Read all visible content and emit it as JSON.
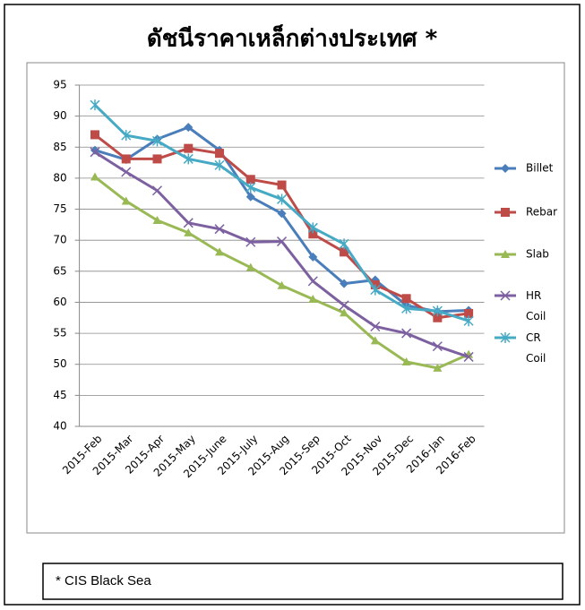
{
  "chart_data": {
    "type": "line",
    "title": "ดัชนีราคาเหล็กต่างประเทศ *",
    "categories": [
      "2015-Feb",
      "2015-Mar",
      "2015-Apr",
      "2015-May",
      "2015-June",
      "2015-July",
      "2015-Aug",
      "2015-Sep",
      "2015-Oct",
      "2015-Nov",
      "2015-Dec",
      "2016-Jan",
      "2016-Feb"
    ],
    "series": [
      {
        "name": "Billet",
        "color": "#4a7ebb",
        "marker": "diamond",
        "values": [
          84.5,
          83,
          86.3,
          88.2,
          84.5,
          77,
          74.3,
          67.3,
          63,
          63.6,
          59.5,
          58.5,
          58.7
        ]
      },
      {
        "name": "Rebar",
        "color": "#be4b48",
        "marker": "square",
        "values": [
          87,
          83.1,
          83.1,
          84.8,
          84,
          79.8,
          78.9,
          71,
          68.1,
          62.8,
          60.6,
          57.5,
          58.2
        ]
      },
      {
        "name": "Slab",
        "color": "#98b954",
        "marker": "triangle",
        "values": [
          80.2,
          76.3,
          73.2,
          71.2,
          68.1,
          65.6,
          62.7,
          60.5,
          58.3,
          53.8,
          50.4,
          49.4,
          51.6
        ]
      },
      {
        "name": "HR Coil",
        "color": "#7d60a0",
        "marker": "x",
        "values": [
          84.2,
          81,
          78,
          72.8,
          71.8,
          69.7,
          69.8,
          63.4,
          59.5,
          56.1,
          55,
          52.9,
          51.2
        ]
      },
      {
        "name": "CR Coil",
        "color": "#46aac5",
        "marker": "star",
        "values": [
          91.8,
          86.9,
          86,
          83.1,
          82.1,
          78.5,
          76.6,
          72,
          69.4,
          62,
          59,
          58.6,
          57
        ]
      }
    ],
    "ylim": [
      40,
      95
    ],
    "yticks": [
      40,
      45,
      50,
      55,
      60,
      65,
      70,
      75,
      80,
      85,
      90,
      95
    ],
    "grid": true,
    "legend": "right",
    "footnote": "* CIS Black Sea"
  }
}
